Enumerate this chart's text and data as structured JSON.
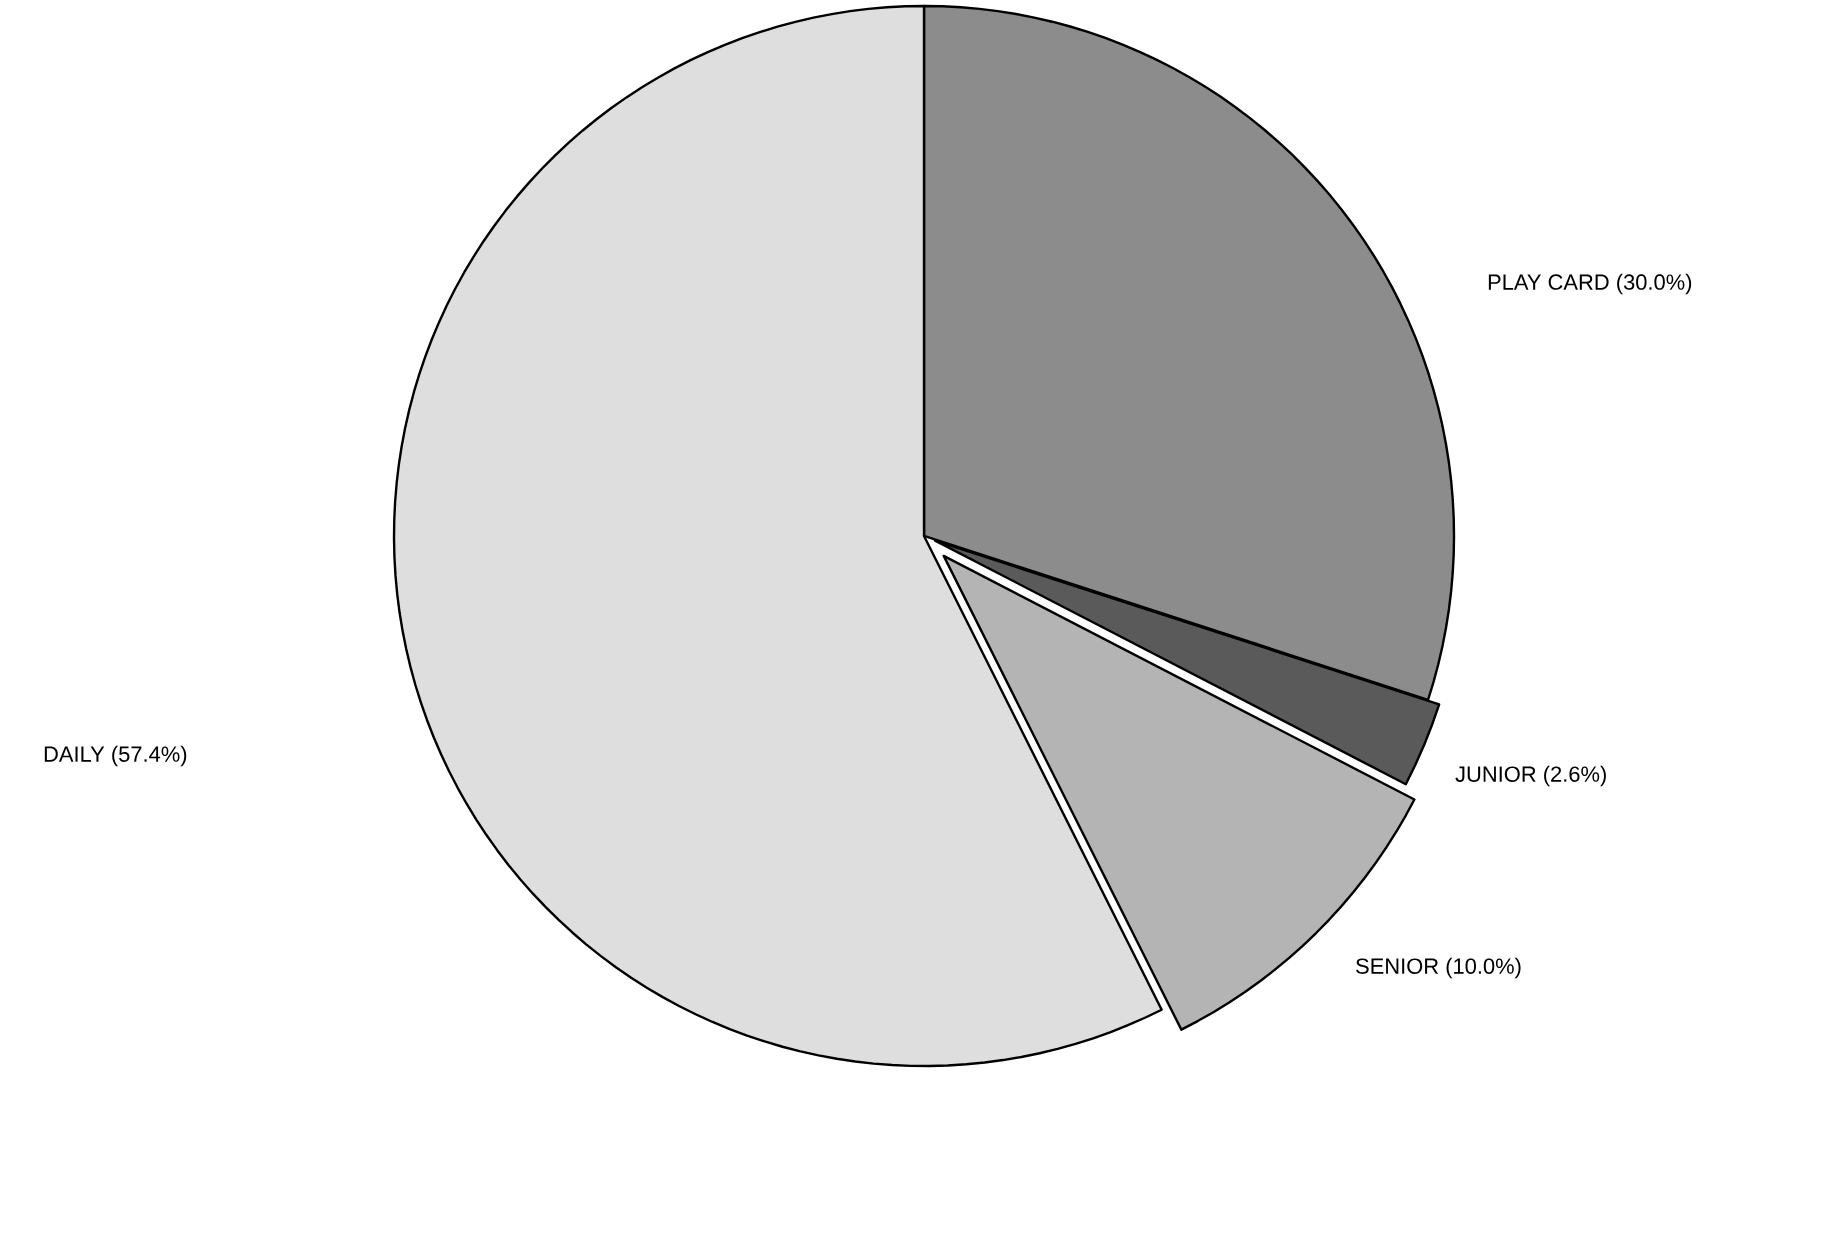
{
  "chart_data": {
    "type": "pie",
    "categories": [
      "PLAY CARD",
      "JUNIOR",
      "SENIOR",
      "DAILY"
    ],
    "values": [
      30.0,
      2.6,
      10.0,
      57.4
    ],
    "value_labels": [
      "(30.0%)",
      "(2.6%)",
      "(10.0%)",
      "(57.4%)"
    ],
    "colors": [
      "#8c8c8c",
      "#5a5a5a",
      "#b4b4b4",
      "#dedede"
    ]
  }
}
